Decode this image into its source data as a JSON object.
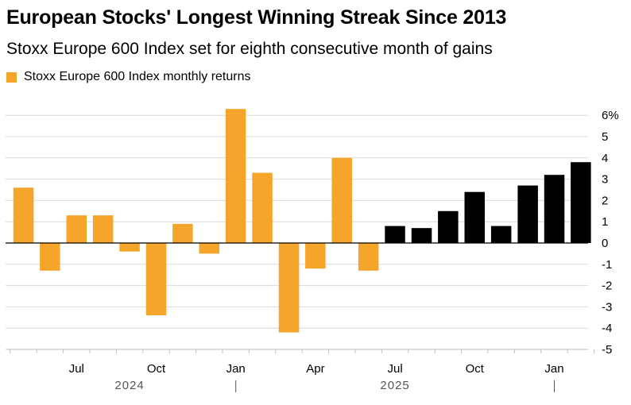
{
  "title": "European Stocks' Longest Winning Streak Since 2013",
  "subtitle": "Stoxx Europe 600 Index set for eighth consecutive month of gains",
  "colors": {
    "orange": "#f5a52a",
    "black": "#000000",
    "grid": "#d9d9d9",
    "zero": "#000000"
  },
  "chart_data": {
    "type": "bar",
    "legend": {
      "label": "Stoxx Europe 600 Index monthly returns",
      "color": "#f5a52a",
      "placement": "top-left"
    },
    "ylim": [
      -5,
      6
    ],
    "yticks": [
      -5,
      -4,
      -3,
      -2,
      -1,
      0,
      1,
      2,
      3,
      4,
      5,
      6
    ],
    "ytick_labels": [
      "-5",
      "-4",
      "-3",
      "-2",
      "-1",
      "0",
      "1",
      "2",
      "3",
      "4",
      "5",
      "6%"
    ],
    "grid": true,
    "categories": [
      "2024-05",
      "2024-06",
      "2024-07",
      "2024-08",
      "2024-09",
      "2024-10",
      "2024-11",
      "2024-12",
      "2025-01",
      "2025-02",
      "2025-03",
      "2025-04",
      "2025-05",
      "2025-06",
      "2025-07",
      "2025-08",
      "2025-09",
      "2025-10",
      "2025-11",
      "2025-12",
      "2026-01",
      "2026-02"
    ],
    "values": [
      2.6,
      -1.3,
      1.3,
      1.3,
      -0.4,
      -3.4,
      0.9,
      -0.5,
      6.3,
      3.3,
      -4.2,
      -1.2,
      4.0,
      -1.3,
      0.8,
      0.7,
      1.5,
      2.4,
      0.8,
      2.7,
      3.2,
      3.8
    ],
    "bar_colors": [
      "#f5a52a",
      "#f5a52a",
      "#f5a52a",
      "#f5a52a",
      "#f5a52a",
      "#f5a52a",
      "#f5a52a",
      "#f5a52a",
      "#f5a52a",
      "#f5a52a",
      "#f5a52a",
      "#f5a52a",
      "#f5a52a",
      "#f5a52a",
      "#000000",
      "#000000",
      "#000000",
      "#000000",
      "#000000",
      "#000000",
      "#000000",
      "#000000"
    ],
    "xtick_labels": [
      {
        "index": 2,
        "label": "Jul"
      },
      {
        "index": 5,
        "label": "Oct"
      },
      {
        "index": 8,
        "label": "Jan"
      },
      {
        "index": 11,
        "label": "Apr"
      },
      {
        "index": 14,
        "label": "Jul"
      },
      {
        "index": 17,
        "label": "Oct"
      },
      {
        "index": 20,
        "label": "Jan"
      }
    ],
    "year_labels": [
      {
        "label": "2024",
        "from": 0,
        "to": 8
      },
      {
        "label": "2025",
        "from": 8,
        "to": 20
      }
    ]
  }
}
